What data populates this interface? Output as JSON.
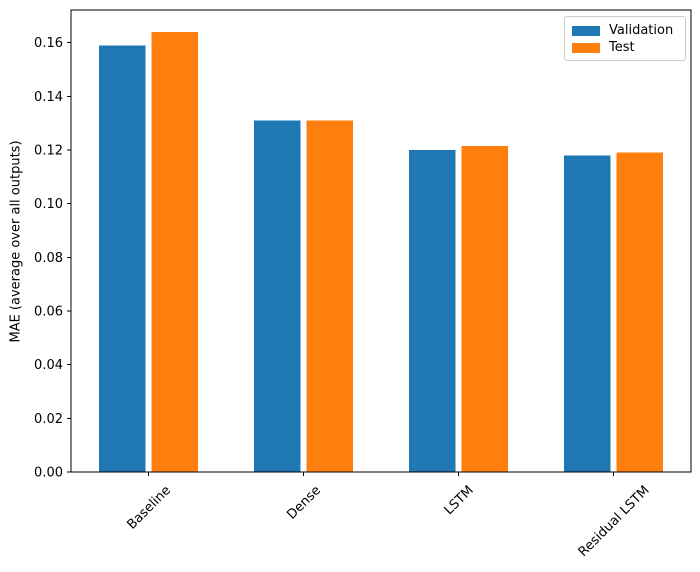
{
  "chart_data": {
    "type": "bar",
    "categories": [
      "Baseline",
      "Dense",
      "LSTM",
      "Residual LSTM"
    ],
    "series": [
      {
        "name": "Validation",
        "color": "#1f77b4",
        "values": [
          0.159,
          0.131,
          0.12,
          0.118
        ]
      },
      {
        "name": "Test",
        "color": "#ff7f0e",
        "values": [
          0.164,
          0.131,
          0.1215,
          0.119
        ]
      }
    ],
    "title": "",
    "xlabel": "",
    "ylabel": "MAE (average over all outputs)",
    "ylim": [
      0,
      0.1722
    ],
    "yticks": [
      0.0,
      0.02,
      0.04,
      0.06,
      0.08,
      0.1,
      0.12,
      0.14,
      0.16
    ],
    "ytick_labels": [
      "0.00",
      "0.02",
      "0.04",
      "0.06",
      "0.08",
      "0.10",
      "0.12",
      "0.14",
      "0.16"
    ],
    "xtick_rotation": 45,
    "bar_width": 0.3,
    "bar_offset": 0.17,
    "grid": false,
    "legend": {
      "position": "upper right",
      "entries": [
        "Validation",
        "Test"
      ]
    }
  }
}
